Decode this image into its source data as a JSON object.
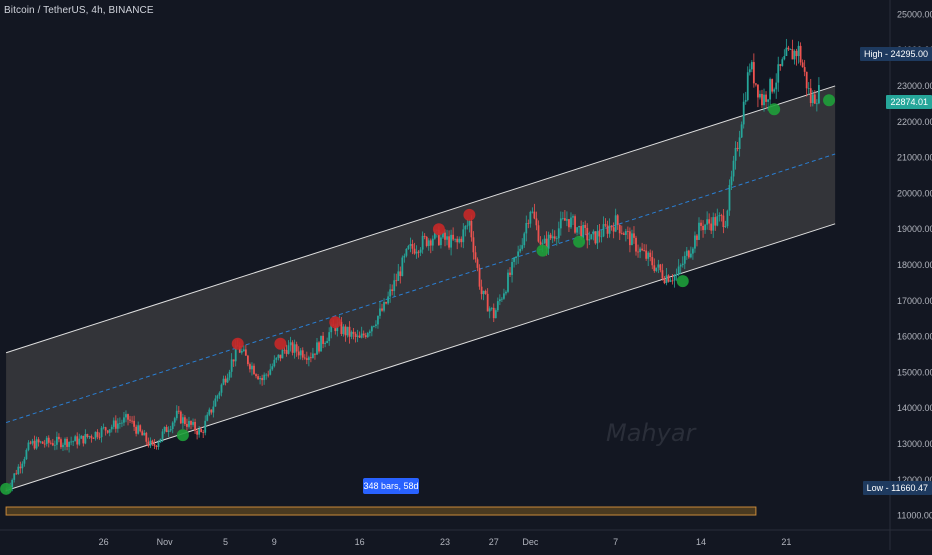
{
  "header": {
    "symbol_title": "Bitcoin / TetherUS, 4h, BINANCE"
  },
  "watermark": "Mahyar",
  "measure_label": "348 bars, 58d",
  "price_boxes": {
    "high": "High - 24295.00",
    "last": "22874.01",
    "low": "Low - 11660.47"
  },
  "colors": {
    "background": "#131722",
    "up": "#26a69a",
    "down": "#ef5350",
    "channel_fill": "#3a3a3d",
    "channel_line": "#e0e0e0",
    "midline": "#2a7fd4",
    "marker_green": "#1e9e3a",
    "marker_red": "#c62828"
  },
  "chart_data": {
    "type": "candlestick",
    "title": "",
    "ylim": [
      10600,
      25400
    ],
    "y_ticks": [
      11000,
      12000,
      13000,
      14000,
      15000,
      16000,
      17000,
      18000,
      19000,
      20000,
      21000,
      22000,
      23000,
      24000,
      25000
    ],
    "y_tick_labels": [
      "11000.00",
      "12000.00",
      "13000.00",
      "14000.00",
      "15000.00",
      "16000.00",
      "17000.00",
      "18000.00",
      "19000.00",
      "20000.00",
      "21000.00",
      "22000.00",
      "23000.00",
      "24000.00",
      "25000.00"
    ],
    "x_ticks": [
      {
        "label": "26",
        "day": 26
      },
      {
        "label": "Nov",
        "day": 31
      },
      {
        "label": "5",
        "day": 36
      },
      {
        "label": "9",
        "day": 40
      },
      {
        "label": "16",
        "day": 47
      },
      {
        "label": "23",
        "day": 54
      },
      {
        "label": "27",
        "day": 58
      },
      {
        "label": "Dec",
        "day": 61
      },
      {
        "label": "7",
        "day": 68
      },
      {
        "label": "14",
        "day": 75
      },
      {
        "label": "21",
        "day": 82
      }
    ],
    "x_range": [
      17.5,
      90.5
    ],
    "key_prices": [
      {
        "day": 18,
        "price": 11700
      },
      {
        "day": 20,
        "price": 13000
      },
      {
        "day": 24,
        "price": 13100
      },
      {
        "day": 28,
        "price": 13700
      },
      {
        "day": 30,
        "price": 12900
      },
      {
        "day": 32,
        "price": 13800
      },
      {
        "day": 34,
        "price": 13300
      },
      {
        "day": 37,
        "price": 15700
      },
      {
        "day": 39,
        "price": 14800
      },
      {
        "day": 41,
        "price": 15700
      },
      {
        "day": 43,
        "price": 15500
      },
      {
        "day": 45,
        "price": 16300
      },
      {
        "day": 47,
        "price": 15900
      },
      {
        "day": 49,
        "price": 16800
      },
      {
        "day": 51,
        "price": 18400
      },
      {
        "day": 53,
        "price": 18800
      },
      {
        "day": 55,
        "price": 18600
      },
      {
        "day": 56,
        "price": 19200
      },
      {
        "day": 57,
        "price": 17200
      },
      {
        "day": 58,
        "price": 16600
      },
      {
        "day": 60,
        "price": 18300
      },
      {
        "day": 61,
        "price": 19600
      },
      {
        "day": 62,
        "price": 18500
      },
      {
        "day": 64,
        "price": 19300
      },
      {
        "day": 66,
        "price": 18700
      },
      {
        "day": 68,
        "price": 19200
      },
      {
        "day": 70,
        "price": 18400
      },
      {
        "day": 72,
        "price": 17700
      },
      {
        "day": 73,
        "price": 17700
      },
      {
        "day": 75,
        "price": 19100
      },
      {
        "day": 77,
        "price": 19300
      },
      {
        "day": 78,
        "price": 21400
      },
      {
        "day": 79,
        "price": 23600
      },
      {
        "day": 80,
        "price": 22600
      },
      {
        "day": 81,
        "price": 23100
      },
      {
        "day": 82,
        "price": 23800
      },
      {
        "day": 83,
        "price": 24000
      },
      {
        "day": 84,
        "price": 22600
      },
      {
        "day": 84.8,
        "price": 22874
      }
    ],
    "channel": {
      "upper": [
        {
          "day": 18,
          "price": 15550
        },
        {
          "day": 86,
          "price": 23000
        }
      ],
      "lower": [
        {
          "day": 18,
          "price": 11700
        },
        {
          "day": 86,
          "price": 19150
        }
      ],
      "mid": [
        {
          "day": 18,
          "price": 13600
        },
        {
          "day": 86,
          "price": 21100
        }
      ]
    },
    "markers": [
      {
        "day": 18,
        "price": 11750,
        "color": "green"
      },
      {
        "day": 32.5,
        "price": 13250,
        "color": "green"
      },
      {
        "day": 37,
        "price": 15800,
        "color": "red"
      },
      {
        "day": 40.5,
        "price": 15800,
        "color": "red"
      },
      {
        "day": 45,
        "price": 16400,
        "color": "red"
      },
      {
        "day": 53.5,
        "price": 19000,
        "color": "red"
      },
      {
        "day": 56,
        "price": 19400,
        "color": "red"
      },
      {
        "day": 62,
        "price": 18400,
        "color": "green"
      },
      {
        "day": 65,
        "price": 18650,
        "color": "green"
      },
      {
        "day": 73.5,
        "price": 17550,
        "color": "green"
      },
      {
        "day": 81,
        "price": 22350,
        "color": "green"
      },
      {
        "day": 85.5,
        "price": 22600,
        "color": "green"
      }
    ],
    "measure_range": {
      "start_day": 18,
      "end_day": 79.5,
      "price": 11130
    }
  }
}
